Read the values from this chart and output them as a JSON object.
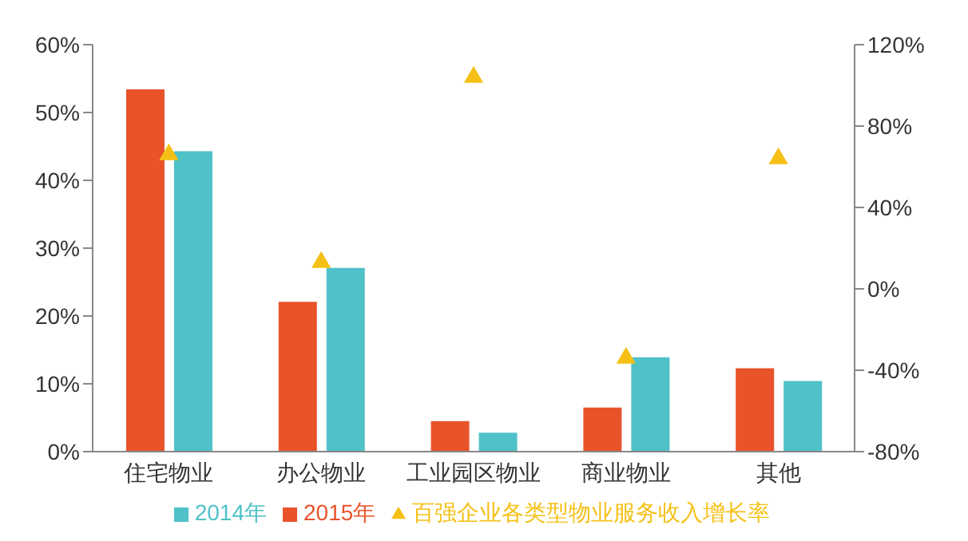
{
  "chart_data": {
    "type": "bar",
    "categories": [
      "住宅物业",
      "办公物业",
      "工业园区物业",
      "商业物业",
      "其他"
    ],
    "series": [
      {
        "name": "2015年",
        "color": "#e8532a",
        "values": [
          53.4,
          22.1,
          4.5,
          6.5,
          12.3
        ]
      },
      {
        "name": "2014年",
        "color": "#4fc1c8",
        "values": [
          44.3,
          27.1,
          2.8,
          13.9,
          10.4
        ]
      },
      {
        "name": "百强企业各类型物业服务收入增长率",
        "type": "scatter",
        "axis": "y2",
        "color": "#f5c016",
        "marker": "triangle",
        "values": [
          66,
          13,
          104,
          -34,
          64
        ]
      }
    ],
    "ylim": [
      0,
      60
    ],
    "yticks": [
      {
        "value": 0,
        "label": "0%"
      },
      {
        "value": 10,
        "label": "10%"
      },
      {
        "value": 20,
        "label": "20%"
      },
      {
        "value": 30,
        "label": "30%"
      },
      {
        "value": 40,
        "label": "40%"
      },
      {
        "value": 50,
        "label": "50%"
      },
      {
        "value": 60,
        "label": "60%"
      }
    ],
    "y2lim": [
      -80,
      120
    ],
    "y2ticks": [
      {
        "value": -80,
        "label": "-80%"
      },
      {
        "value": -40,
        "label": "-40%"
      },
      {
        "value": 0,
        "label": "0%"
      },
      {
        "value": 40,
        "label": "40%"
      },
      {
        "value": 80,
        "label": "80%"
      },
      {
        "value": 120,
        "label": "120%"
      }
    ],
    "grid": false,
    "legend": "bottom"
  }
}
